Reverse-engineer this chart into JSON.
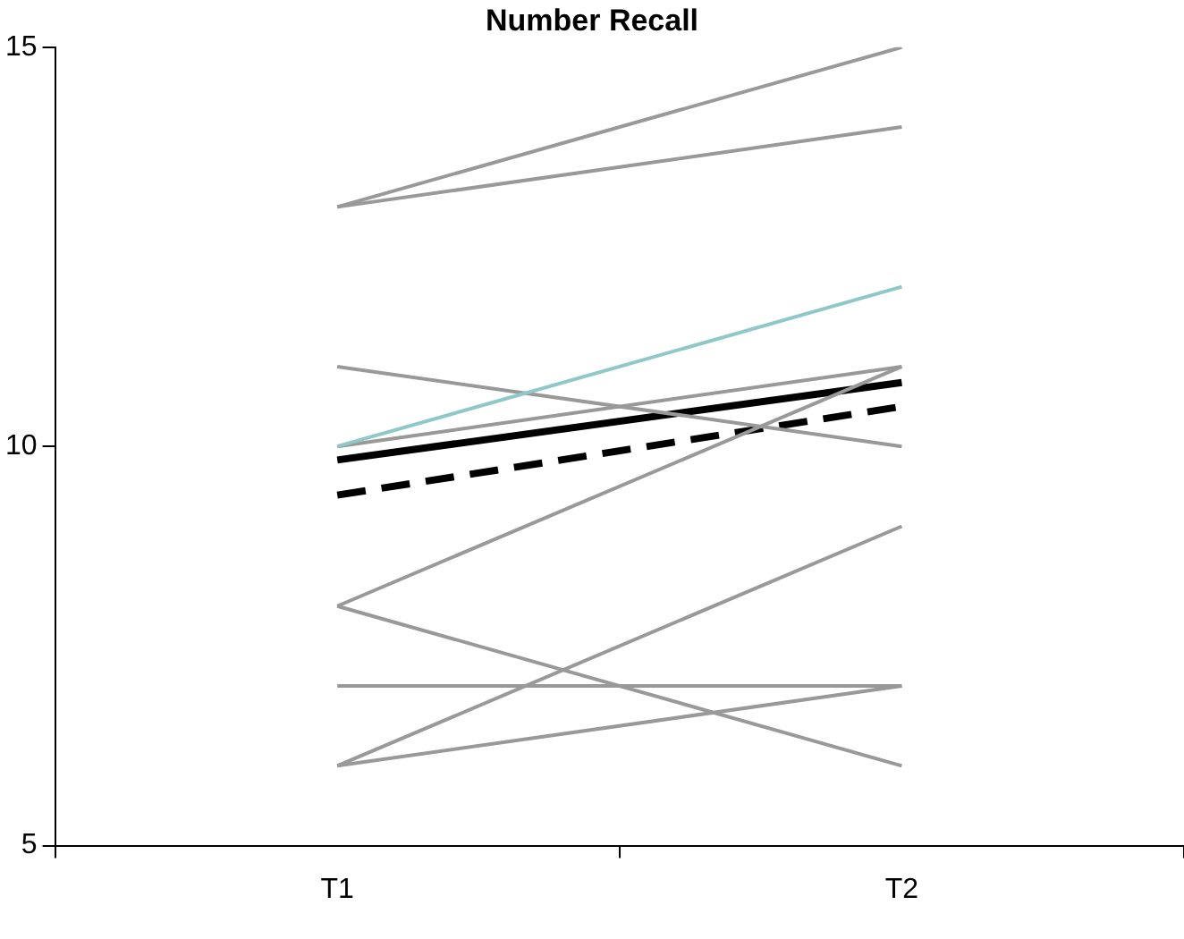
{
  "chart_data": {
    "type": "line",
    "title": "Number Recall",
    "categories": [
      "T1",
      "T2"
    ],
    "ylim": [
      5,
      15
    ],
    "yticks": [
      5,
      10,
      15
    ],
    "grid": false,
    "legend": false,
    "marker": "none",
    "series": [
      {
        "color": "#999999",
        "values": [
          13,
          15
        ]
      },
      {
        "color": "#999999",
        "values": [
          13,
          14
        ]
      },
      {
        "color": "#8fc8c8",
        "values": [
          10,
          12
        ]
      },
      {
        "color": "#999999",
        "values": [
          10,
          11
        ]
      },
      {
        "color": "#999999",
        "values": [
          11,
          10
        ]
      },
      {
        "color": "#999999",
        "values": [
          8,
          11
        ]
      },
      {
        "color": "#999999",
        "values": [
          8,
          6
        ]
      },
      {
        "color": "#999999",
        "values": [
          7,
          7
        ]
      },
      {
        "color": "#999999",
        "values": [
          6,
          9
        ]
      },
      {
        "color": "#999999",
        "values": [
          6,
          7
        ]
      },
      {
        "color": "#000000",
        "values": [
          9.83,
          10.8
        ],
        "line_style": "solid"
      },
      {
        "color": "#000000",
        "values": [
          9.39,
          10.5
        ],
        "line_style": "dashed"
      }
    ]
  }
}
